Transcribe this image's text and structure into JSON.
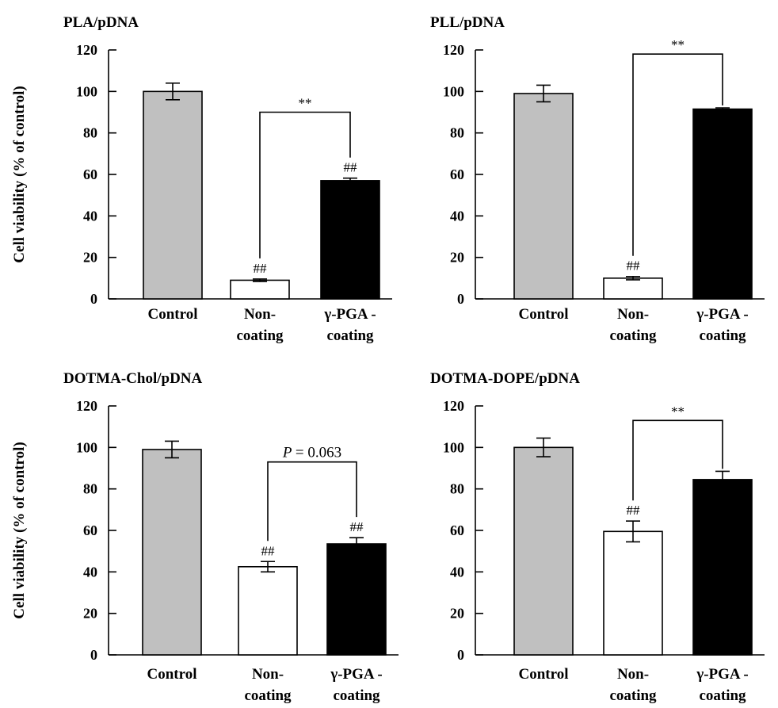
{
  "chart_data": [
    {
      "type": "bar",
      "title": "PLA/pDNA",
      "ylabel": "Cell viability (% of control)",
      "ylim": [
        0,
        120
      ],
      "yticks": [
        "0",
        "20",
        "40",
        "60",
        "80",
        "100",
        "120"
      ],
      "categories": [
        [
          "Control"
        ],
        [
          "Non-",
          "coating"
        ],
        [
          "γ-PGA -",
          "coating"
        ]
      ],
      "values": [
        100,
        9,
        57
      ],
      "errors": [
        4,
        0.6,
        1.2
      ],
      "fills": [
        "#c0c0c0",
        "#ffffff",
        "#000000"
      ],
      "bar_marks": [
        "",
        "##",
        "##"
      ],
      "bracket": {
        "from": 1,
        "to": 2,
        "label": "**",
        "label_italic_prefix": "",
        "height": 90
      }
    },
    {
      "type": "bar",
      "title": "PLL/pDNA",
      "ylabel": "",
      "ylim": [
        0,
        120
      ],
      "yticks": [
        "0",
        "20",
        "40",
        "60",
        "80",
        "100",
        "120"
      ],
      "categories": [
        [
          "Control"
        ],
        [
          "Non-",
          "coating"
        ],
        [
          "γ-PGA -",
          "coating"
        ]
      ],
      "values": [
        99,
        10,
        91.5
      ],
      "errors": [
        4,
        0.8,
        0.6
      ],
      "fills": [
        "#c0c0c0",
        "#ffffff",
        "#000000"
      ],
      "bar_marks": [
        "",
        "##",
        ""
      ],
      "bracket": {
        "from": 1,
        "to": 2,
        "label": "**",
        "label_italic_prefix": "",
        "height": 118
      }
    },
    {
      "type": "bar",
      "title": "DOTMA-Chol/pDNA",
      "ylabel": "Cell viability (% of control)",
      "ylim": [
        0,
        120
      ],
      "yticks": [
        "0",
        "20",
        "40",
        "60",
        "80",
        "100",
        "120"
      ],
      "categories": [
        [
          "Control"
        ],
        [
          "Non-",
          "coating"
        ],
        [
          "γ-PGA -",
          "coating"
        ]
      ],
      "values": [
        99,
        42.5,
        53.5
      ],
      "errors": [
        4,
        2.5,
        3
      ],
      "fills": [
        "#c0c0c0",
        "#ffffff",
        "#000000"
      ],
      "bar_marks": [
        "",
        "##",
        "##"
      ],
      "bracket": {
        "from": 1,
        "to": 2,
        "label": "= 0.063",
        "label_italic_prefix": "P",
        "height": 93
      }
    },
    {
      "type": "bar",
      "title": "DOTMA-DOPE/pDNA",
      "ylabel": "",
      "ylim": [
        0,
        120
      ],
      "yticks": [
        "0",
        "20",
        "40",
        "60",
        "80",
        "100",
        "120"
      ],
      "categories": [
        [
          "Control"
        ],
        [
          "Non-",
          "coating"
        ],
        [
          "γ-PGA -",
          "coating"
        ]
      ],
      "values": [
        100,
        59.5,
        84.5
      ],
      "errors": [
        4.5,
        5,
        4
      ],
      "fills": [
        "#c0c0c0",
        "#ffffff",
        "#000000"
      ],
      "bar_marks": [
        "",
        "##",
        ""
      ],
      "bracket": {
        "from": 1,
        "to": 2,
        "label": "**",
        "label_italic_prefix": "",
        "height": 113
      }
    }
  ]
}
